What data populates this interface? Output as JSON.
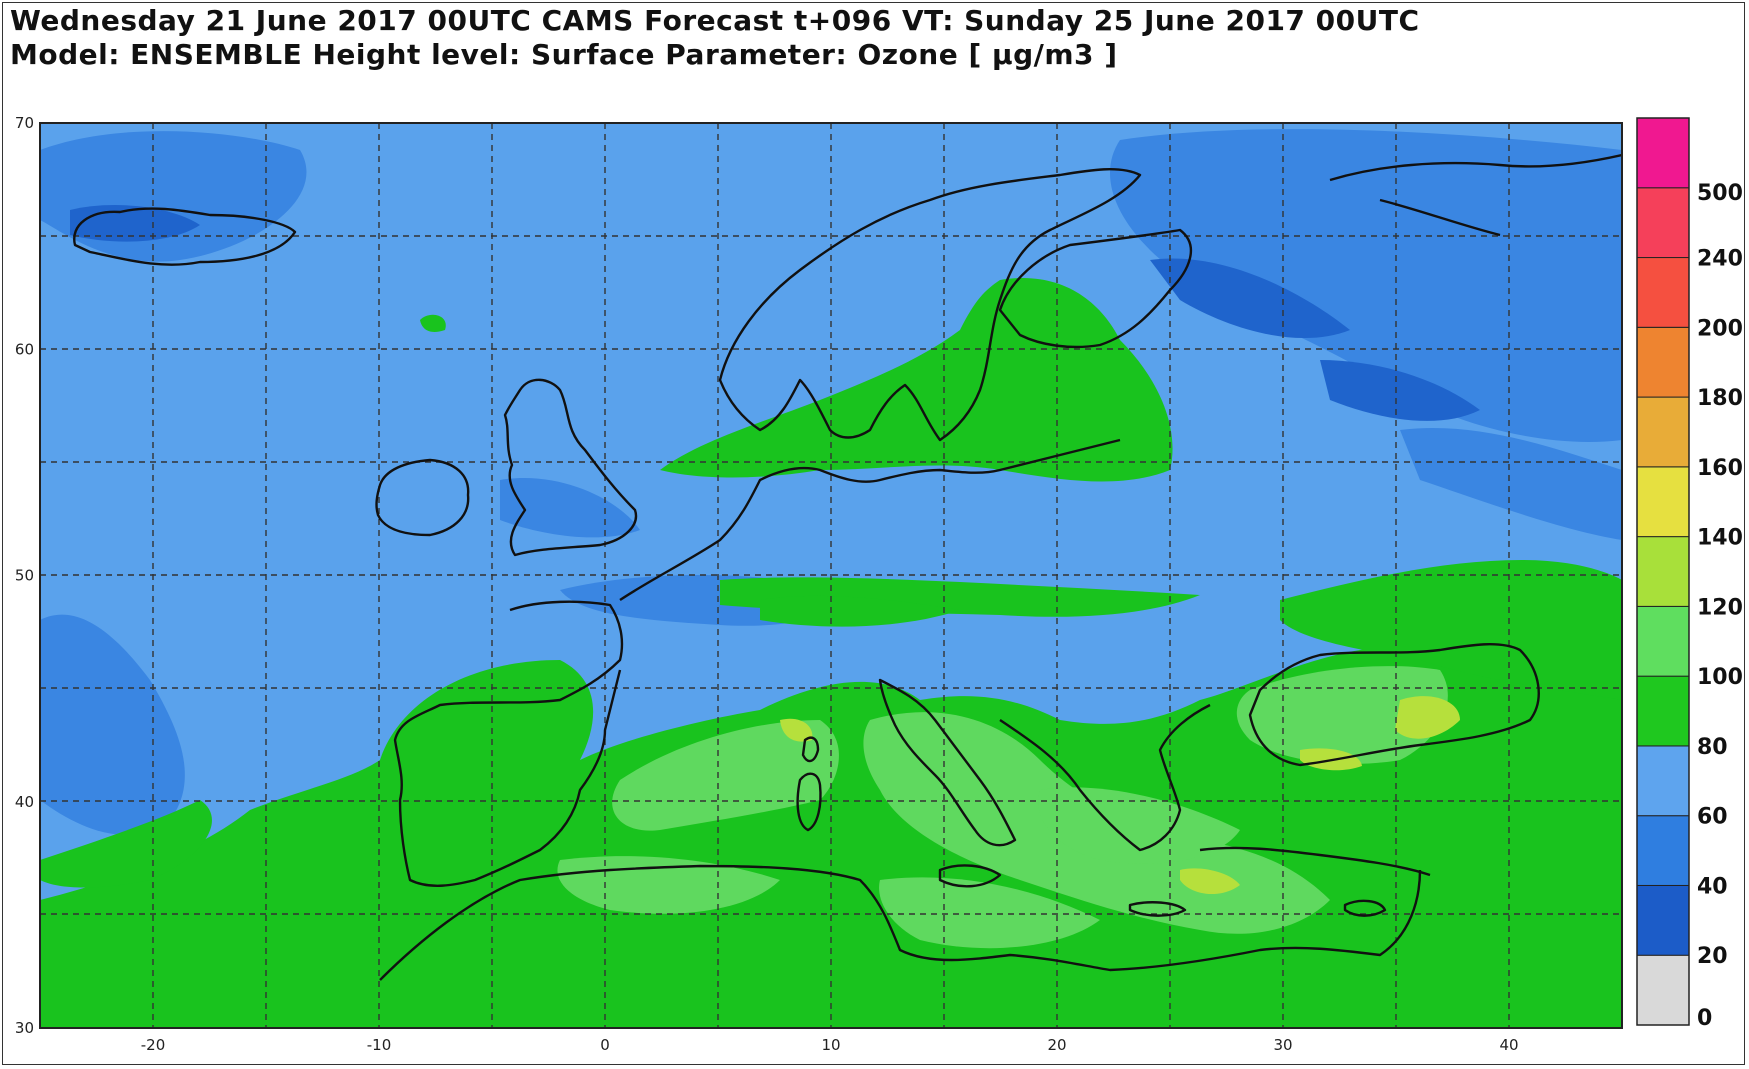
{
  "header": {
    "line1": "Wednesday 21 June 2017 00UTC CAMS Forecast t+096 VT: Sunday 25 June 2017 00UTC",
    "line2": "Model: ENSEMBLE  Height level: Surface  Parameter: Ozone [ µg/m3 ]"
  },
  "map": {
    "lon_range": [
      -25,
      45
    ],
    "lat_range": [
      30,
      70
    ],
    "lon_ticks": [
      "-20",
      "-10",
      "0",
      "10",
      "20",
      "30",
      "40"
    ],
    "lat_ticks": [
      "30",
      "40",
      "50",
      "60",
      "70"
    ],
    "grid_lines": true,
    "ocean_base_color": "#4f98e8"
  },
  "colorbar": {
    "labels": [
      "0",
      "20",
      "40",
      "60",
      "80",
      "100",
      "120",
      "140",
      "160",
      "180",
      "200",
      "240",
      "500"
    ],
    "colors": [
      "#d9d9d9",
      "#1c5cc8",
      "#2f7ee0",
      "#5ea4ee",
      "#1fc81f",
      "#5fde5f",
      "#a8e03a",
      "#e6e040",
      "#e8ac38",
      "#ee8430",
      "#f55040",
      "#f5405a",
      "#f01890"
    ]
  }
}
